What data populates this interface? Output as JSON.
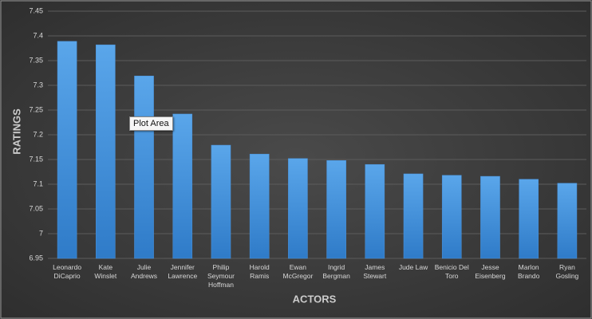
{
  "chart_data": {
    "type": "bar",
    "categories": [
      "Leonardo DiCaprio",
      "Kate Winslet",
      "Julie Andrews",
      "Jennifer Lawrence",
      "Philip Seymour Hoffman",
      "Harold Ramis",
      "Ewan McGregor",
      "Ingrid Bergman",
      "James Stewart",
      "Jude Law",
      "Benicio Del Toro",
      "Jesse Eisenberg",
      "Marlon Brando",
      "Ryan Gosling"
    ],
    "values": [
      7.389,
      7.382,
      7.319,
      7.242,
      7.179,
      7.161,
      7.152,
      7.148,
      7.14,
      7.121,
      7.118,
      7.116,
      7.11,
      7.102
    ],
    "color": "#4a93dc",
    "ylim": [
      6.95,
      7.45
    ],
    "yticks": [
      6.95,
      7,
      7.05,
      7.1,
      7.15,
      7.2,
      7.25,
      7.3,
      7.35,
      7.4,
      7.45
    ],
    "grid": true,
    "x_label": "ACTORS",
    "y_label": "RATINGS",
    "tooltip": "Plot Area"
  }
}
